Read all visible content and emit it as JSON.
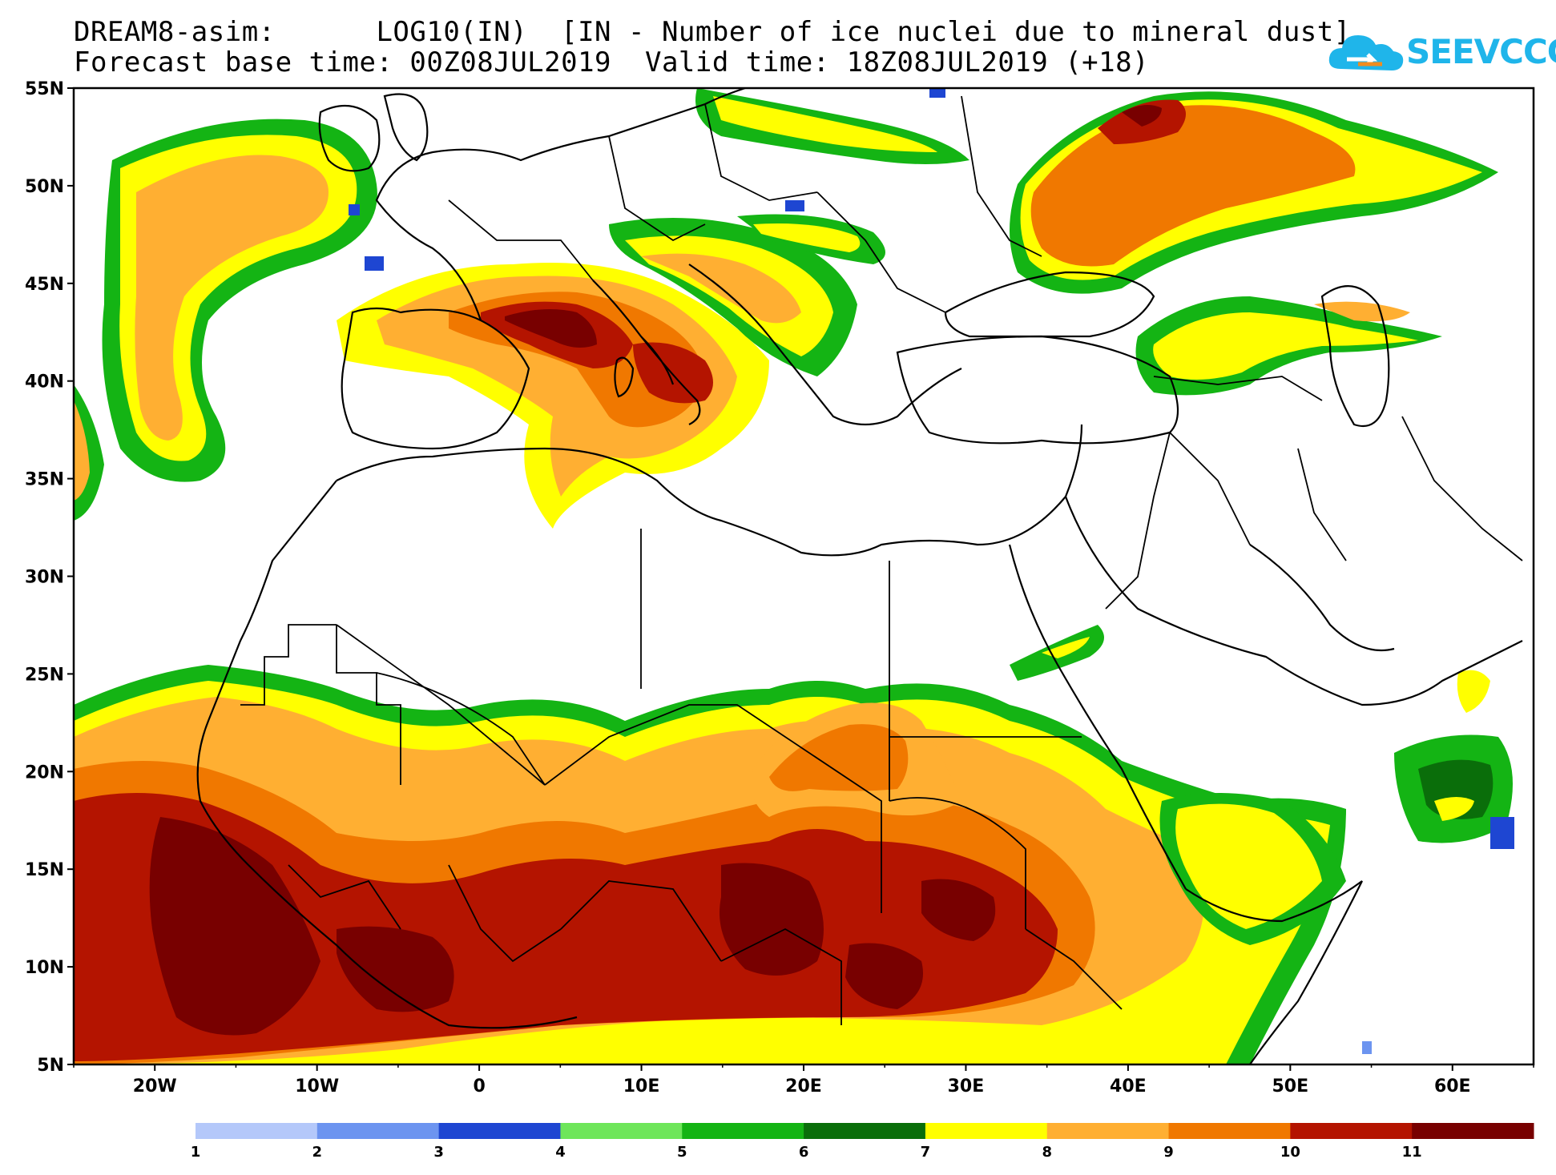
{
  "header": {
    "title_line1": "DREAM8-asim:      LOG10(IN)  [IN - Number of ice nuclei due to mineral dust]",
    "title_line2": "Forecast base time: 00Z08JUL2019  Valid time: 18Z08JUL2019 (+18)"
  },
  "logo": {
    "text": "SEEVCCC",
    "icon": "cloud-icon",
    "color": "#1fb5ea"
  },
  "map": {
    "lat_labels": [
      "55N",
      "50N",
      "45N",
      "40N",
      "35N",
      "30N",
      "25N",
      "20N",
      "15N",
      "10N",
      "5N"
    ],
    "lon_labels": [
      "20W",
      "10W",
      "0",
      "10E",
      "20E",
      "30E",
      "40E",
      "50E",
      "60E"
    ],
    "lat_range": [
      5,
      55
    ],
    "lon_range": [
      -25,
      65
    ]
  },
  "colorbar": {
    "labels": [
      "1",
      "2",
      "3",
      "4",
      "5",
      "6",
      "7",
      "8",
      "9",
      "10",
      "11"
    ],
    "colors": [
      "#b4c8fa",
      "#6c94f0",
      "#1e46d2",
      "#6ee65a",
      "#14b414",
      "#0a6e0a",
      "#ffff00",
      "#ffaf32",
      "#f07800",
      "#b41400",
      "#780000"
    ]
  },
  "field_colors": {
    "level5": "#6ee65a",
    "level6": "#14b414",
    "level7": "#0a6e0a",
    "level8": "#ffff00",
    "level9": "#ffaf32",
    "level10": "#f07800",
    "level11": "#b41400",
    "level12": "#780000"
  }
}
